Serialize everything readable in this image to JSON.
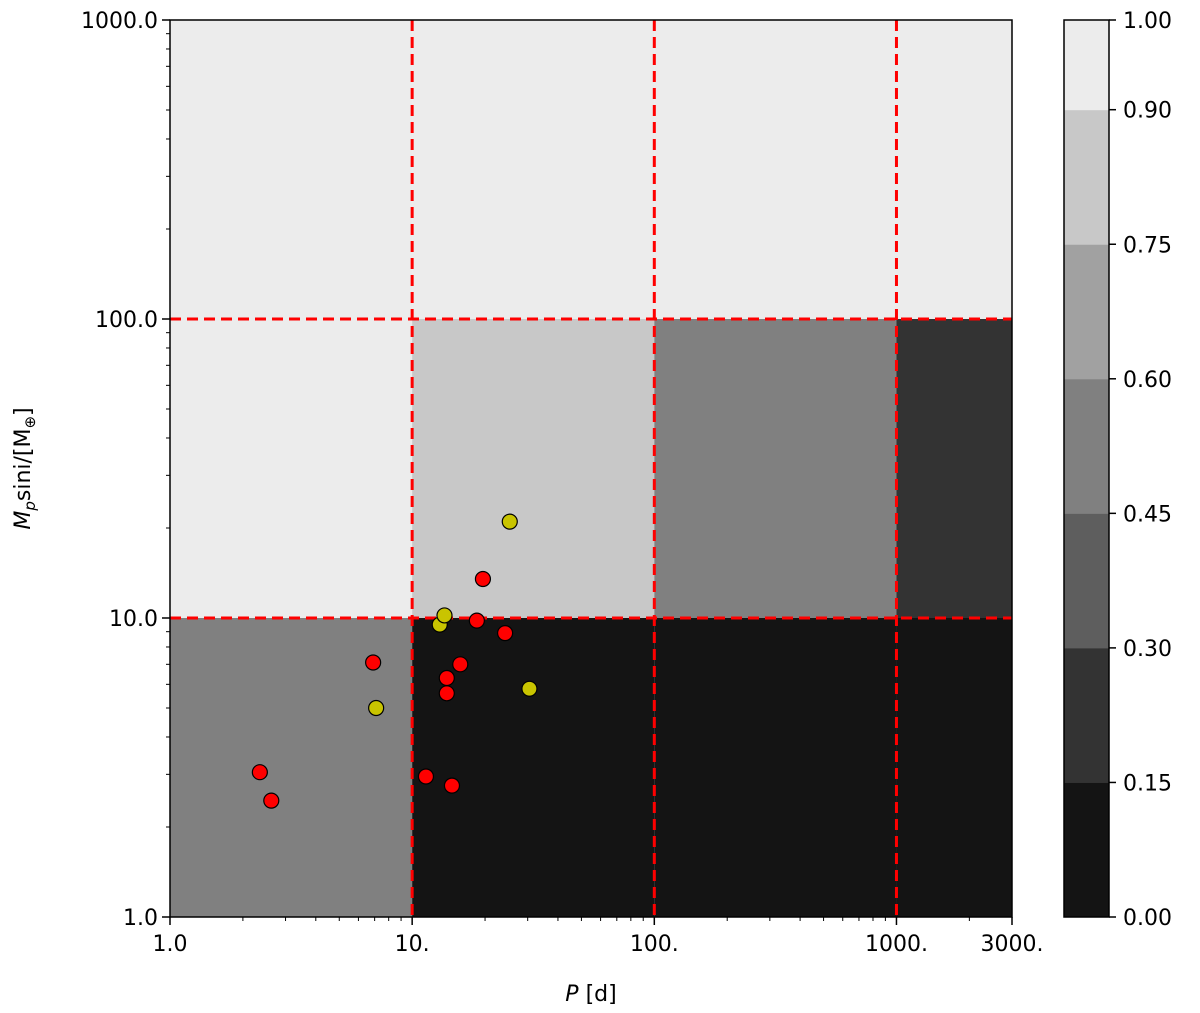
{
  "chart_data": {
    "type": "heatmap",
    "title": "",
    "xlabel": {
      "italic": "P",
      "rest": " [d]"
    },
    "ylabel": {
      "italic": "M",
      "sub": "p",
      "rest": "sini/[M",
      "sub2": "⊕",
      "close": "]"
    },
    "xscale": "log",
    "yscale": "log",
    "xlim": [
      1,
      3000
    ],
    "ylim": [
      1,
      1000
    ],
    "xticks": [
      {
        "value": 1,
        "label": "1.0"
      },
      {
        "value": 10,
        "label": "10."
      },
      {
        "value": 100,
        "label": "100."
      },
      {
        "value": 1000,
        "label": "1000."
      },
      {
        "value": 3000,
        "label": "3000."
      }
    ],
    "yticks": [
      {
        "value": 1,
        "label": "1.0"
      },
      {
        "value": 10,
        "label": "10.0"
      },
      {
        "value": 100,
        "label": "100.0"
      },
      {
        "value": 1000,
        "label": "1000.0"
      }
    ],
    "cells": [
      {
        "x": [
          1,
          10
        ],
        "y": [
          1,
          10
        ],
        "value": 0.5
      },
      {
        "x": [
          10,
          100
        ],
        "y": [
          1,
          10
        ],
        "value": 0.07
      },
      {
        "x": [
          100,
          1000
        ],
        "y": [
          1,
          10
        ],
        "value": 0.07
      },
      {
        "x": [
          1000,
          3000
        ],
        "y": [
          1,
          10
        ],
        "value": 0.07
      },
      {
        "x": [
          1,
          10
        ],
        "y": [
          10,
          100
        ],
        "value": 0.95
      },
      {
        "x": [
          10,
          100
        ],
        "y": [
          10,
          100
        ],
        "value": 0.8
      },
      {
        "x": [
          100,
          1000
        ],
        "y": [
          10,
          100
        ],
        "value": 0.5
      },
      {
        "x": [
          1000,
          3000
        ],
        "y": [
          10,
          100
        ],
        "value": 0.2
      },
      {
        "x": [
          1,
          10
        ],
        "y": [
          100,
          1000
        ],
        "value": 0.95
      },
      {
        "x": [
          10,
          100
        ],
        "y": [
          100,
          1000
        ],
        "value": 0.95
      },
      {
        "x": [
          100,
          1000
        ],
        "y": [
          100,
          1000
        ],
        "value": 0.95
      },
      {
        "x": [
          1000,
          3000
        ],
        "y": [
          100,
          1000
        ],
        "value": 0.95
      }
    ],
    "grid_lines": {
      "color": "#ff0000",
      "style": "dashed",
      "x": [
        10,
        100,
        1000
      ],
      "y": [
        10,
        100
      ]
    },
    "series": [
      {
        "color": "#ff0000",
        "points": [
          {
            "x": 2.35,
            "y": 3.05
          },
          {
            "x": 2.62,
            "y": 2.45
          },
          {
            "x": 6.9,
            "y": 7.1
          },
          {
            "x": 11.4,
            "y": 2.95
          },
          {
            "x": 13.9,
            "y": 5.6
          },
          {
            "x": 13.9,
            "y": 6.3
          },
          {
            "x": 14.6,
            "y": 2.75
          },
          {
            "x": 15.8,
            "y": 7.0
          },
          {
            "x": 18.5,
            "y": 9.8
          },
          {
            "x": 19.6,
            "y": 13.5
          },
          {
            "x": 24.2,
            "y": 8.9
          }
        ]
      },
      {
        "color": "#c9c400",
        "points": [
          {
            "x": 7.1,
            "y": 5.0
          },
          {
            "x": 13.0,
            "y": 9.5
          },
          {
            "x": 13.6,
            "y": 10.2
          },
          {
            "x": 25.3,
            "y": 21.0
          },
          {
            "x": 30.5,
            "y": 5.8
          }
        ]
      }
    ],
    "colorbar": {
      "levels": [
        0.0,
        0.15,
        0.3,
        0.45,
        0.6,
        0.75,
        0.9,
        1.0
      ],
      "labels": [
        "0.00",
        "0.15",
        "0.30",
        "0.45",
        "0.60",
        "0.75",
        "0.90",
        "1.00"
      ],
      "colors": [
        "#141414",
        "#333333",
        "#5e5e5e",
        "#808080",
        "#a1a1a1",
        "#c8c8c8",
        "#ececec"
      ]
    }
  }
}
